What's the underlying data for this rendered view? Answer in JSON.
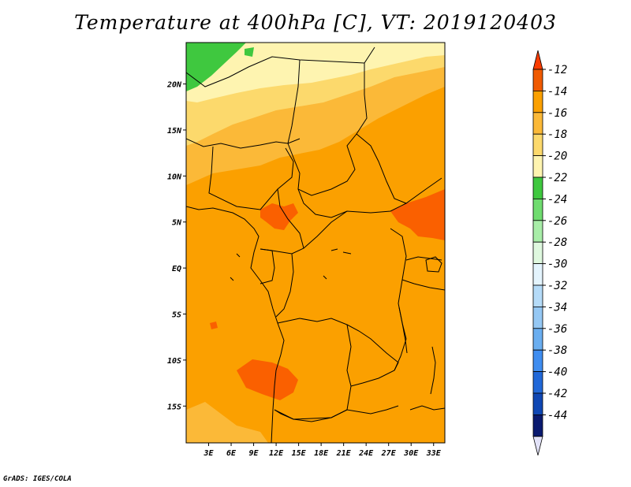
{
  "title": "Temperature at 400hPa [C], VT: 2019120403",
  "credit": "GrADS: IGES/COLA",
  "map": {
    "projection": "lat-lon",
    "lon_range_deg": [
      0,
      34.5
    ],
    "lat_range_deg": [
      -19,
      24.5
    ],
    "lon_ticks": [
      {
        "value": 3,
        "label": "3E"
      },
      {
        "value": 6,
        "label": "6E"
      },
      {
        "value": 9,
        "label": "9E"
      },
      {
        "value": 12,
        "label": "12E"
      },
      {
        "value": 15,
        "label": "15E"
      },
      {
        "value": 18,
        "label": "18E"
      },
      {
        "value": 21,
        "label": "21E"
      },
      {
        "value": 24,
        "label": "24E"
      },
      {
        "value": 27,
        "label": "27E"
      },
      {
        "value": 30,
        "label": "30E"
      },
      {
        "value": 33,
        "label": "33E"
      }
    ],
    "lat_ticks": [
      {
        "value": 20,
        "label": "20N"
      },
      {
        "value": 15,
        "label": "15N"
      },
      {
        "value": 10,
        "label": "10N"
      },
      {
        "value": 5,
        "label": "5N"
      },
      {
        "value": 0,
        "label": "EQ"
      },
      {
        "value": -5,
        "label": "5S"
      },
      {
        "value": -10,
        "label": "10S"
      },
      {
        "value": -15,
        "label": "15S"
      }
    ],
    "dominant_band": "-16 to -14",
    "colors": {
      "band_neg12_neg14": "#fa6000",
      "band_neg14_neg16": "#fba000",
      "band_neg16_neg18": "#fbb938",
      "band_neg18_neg20": "#fcd96c",
      "band_neg20_neg22": "#fef4b0",
      "band_neg22_neg24": "#3fc83f",
      "borders": "#000000"
    }
  },
  "colorbar": {
    "levels": [
      "-12",
      "-14",
      "-16",
      "-18",
      "-20",
      "-22",
      "-24",
      "-26",
      "-28",
      "-30",
      "-32",
      "-34",
      "-36",
      "-38",
      "-40",
      "-42",
      "-44"
    ],
    "colors": [
      "#f05a00",
      "#fba000",
      "#fbb938",
      "#fcd96c",
      "#fef4b0",
      "#3fc83f",
      "#6fdc6f",
      "#a8eda8",
      "#dff8df",
      "#e4f4fd",
      "#b5dbf8",
      "#95c8f4",
      "#6aaef0",
      "#3f8df0",
      "#2168d8",
      "#0f47b4",
      "#0a1a70"
    ],
    "upper_arrow_color": "#fa3c00",
    "lower_arrow_color": "#e2e2f8"
  }
}
